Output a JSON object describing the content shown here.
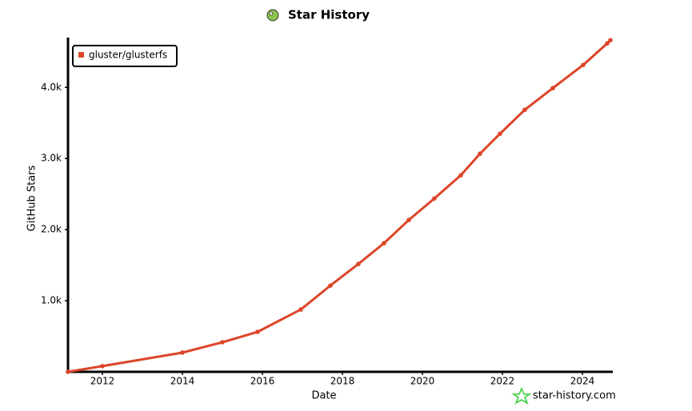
{
  "chart_data": {
    "type": "line",
    "title": "Star History",
    "x_label": "Date",
    "y_label": "GitHub Stars",
    "watermark": "star-history.com",
    "legend": "top-left",
    "series": [
      {
        "name": "gluster/glusterfs",
        "color": "#dd4528",
        "x": [
          2011.14,
          2012,
          2014,
          2015,
          2015.88,
          2016.96,
          2017.7,
          2018.4,
          2019.04,
          2019.66,
          2020.3,
          2020.96,
          2021.44,
          2021.94,
          2022.56,
          2023.26,
          2024.02,
          2024.62,
          2024.7
        ],
        "values": [
          0,
          80,
          270,
          416,
          562,
          876,
          1213,
          1517,
          1809,
          2135,
          2438,
          2764,
          3067,
          3348,
          3685,
          3989,
          4315,
          4618,
          4663
        ]
      }
    ],
    "xlim": [
      2011.14,
      2024.7
    ],
    "xticks": [
      2012,
      2014,
      2016,
      2018,
      2020,
      2022,
      2024
    ],
    "ylim": [
      0,
      4700
    ],
    "yticks": [
      {
        "value": 1000,
        "label": "1.0k"
      },
      {
        "value": 2000,
        "label": "2.0k"
      },
      {
        "value": 3000,
        "label": "3.0k"
      },
      {
        "value": 4000,
        "label": "4.0k"
      }
    ]
  }
}
